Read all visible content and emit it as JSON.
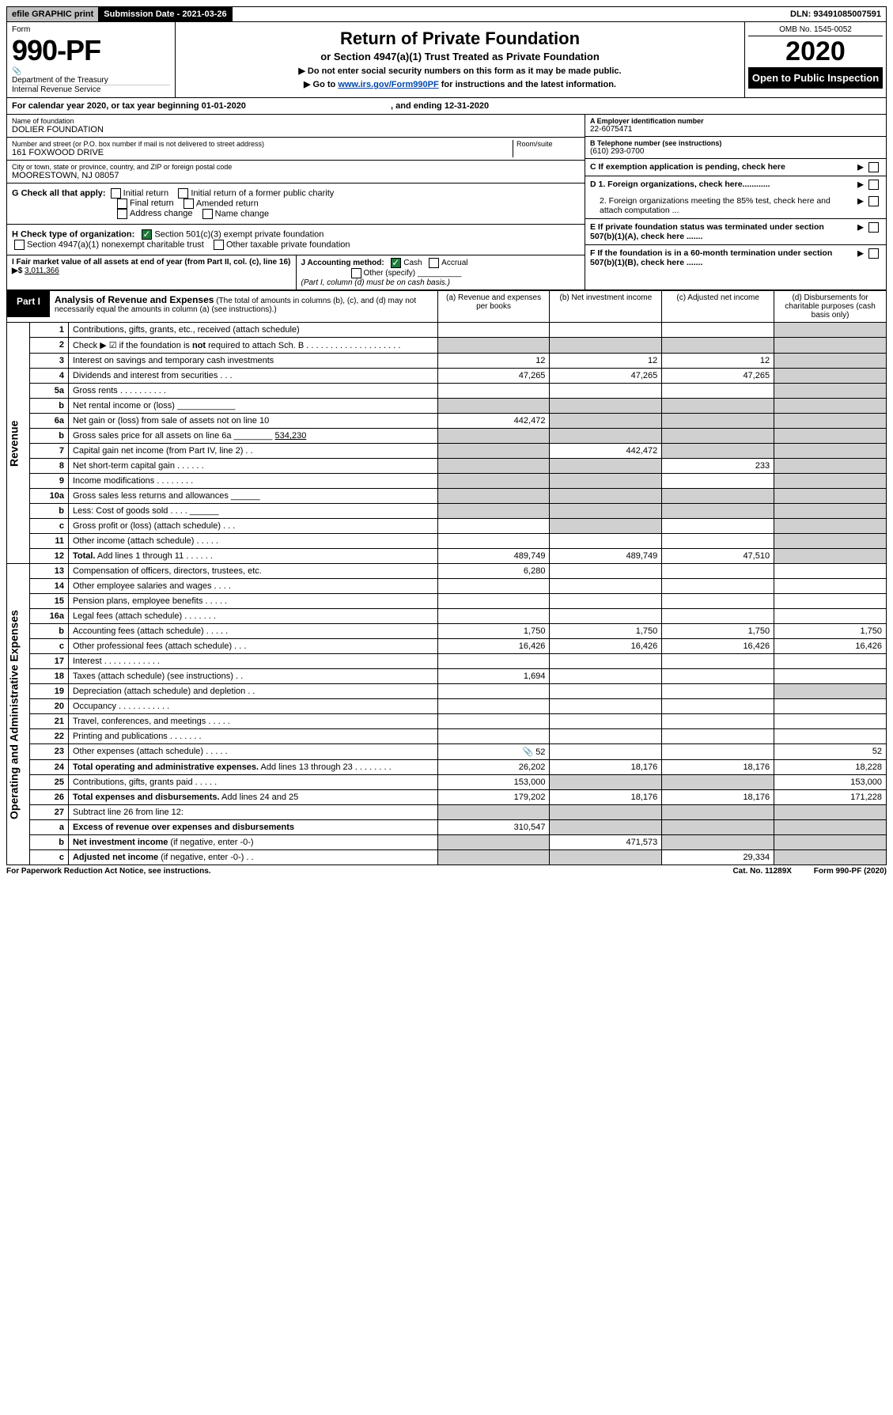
{
  "topbar": {
    "efile": "efile GRAPHIC print",
    "submission": "Submission Date - 2021-03-26",
    "dln": "DLN: 93491085007591"
  },
  "header": {
    "form_label": "Form",
    "form_num": "990-PF",
    "dept": "Department of the Treasury",
    "irs": "Internal Revenue Service",
    "title": "Return of Private Foundation",
    "subtitle": "or Section 4947(a)(1) Trust Treated as Private Foundation",
    "note1": "▶ Do not enter social security numbers on this form as it may be made public.",
    "note2_pre": "▶ Go to ",
    "note2_link": "www.irs.gov/Form990PF",
    "note2_post": " for instructions and the latest information.",
    "omb": "OMB No. 1545-0052",
    "year": "2020",
    "open": "Open to Public Inspection"
  },
  "calendar": {
    "pre": "For calendar year 2020, or tax year beginning ",
    "begin": "01-01-2020",
    "mid": " , and ending ",
    "end": "12-31-2020"
  },
  "ident": {
    "name_lbl": "Name of foundation",
    "name": "DOLIER FOUNDATION",
    "addr_lbl": "Number and street (or P.O. box number if mail is not delivered to street address)",
    "addr": "161 FOXWOOD DRIVE",
    "room_lbl": "Room/suite",
    "city_lbl": "City or town, state or province, country, and ZIP or foreign postal code",
    "city": "MOORESTOWN, NJ  08057",
    "a_lbl": "A Employer identification number",
    "a_val": "22-6075471",
    "b_lbl": "B Telephone number (see instructions)",
    "b_val": "(610) 293-0700",
    "c_lbl": "C If exemption application is pending, check here",
    "d1": "D 1. Foreign organizations, check here............",
    "d2": "2. Foreign organizations meeting the 85% test, check here and attach computation ...",
    "e": "E  If private foundation status was terminated under section 507(b)(1)(A), check here .......",
    "f": "F  If the foundation is in a 60-month termination under section 507(b)(1)(B), check here ......."
  },
  "g": {
    "label": "G Check all that apply:",
    "opts": [
      "Initial return",
      "Initial return of a former public charity",
      "Final return",
      "Amended return",
      "Address change",
      "Name change"
    ]
  },
  "h": {
    "label": "H Check type of organization:",
    "opt1": "Section 501(c)(3) exempt private foundation",
    "opt2": "Section 4947(a)(1) nonexempt charitable trust",
    "opt3": "Other taxable private foundation"
  },
  "i": {
    "label": "I Fair market value of all assets at end of year (from Part II, col. (c), line 16) ▶$ ",
    "val": "3,011,366"
  },
  "j": {
    "label": "J Accounting method:",
    "cash": "Cash",
    "accrual": "Accrual",
    "other": "Other (specify)",
    "note": "(Part I, column (d) must be on cash basis.)"
  },
  "part1": {
    "tab": "Part I",
    "title": "Analysis of Revenue and Expenses",
    "note": " (The total of amounts in columns (b), (c), and (d) may not necessarily equal the amounts in column (a) (see instructions).)",
    "cols": {
      "a": "(a)   Revenue and expenses per books",
      "b": "(b)  Net investment income",
      "c": "(c)  Adjusted net income",
      "d": "(d)  Disbursements for charitable purposes (cash basis only)"
    }
  },
  "revenue_label": "Revenue",
  "expenses_label": "Operating and Administrative Expenses",
  "rows": [
    {
      "n": "1",
      "d": "Contributions, gifts, grants, etc., received (attach schedule)",
      "a": "",
      "b": "",
      "c": "",
      "dcol": "shade"
    },
    {
      "n": "2",
      "d": "Check ▶ ☑ if the foundation is <b>not</b> required to attach Sch. B . . . . . . . . . . . . . . . . . . . .",
      "a": "shade",
      "b": "shade",
      "c": "shade",
      "dcol": "shade"
    },
    {
      "n": "3",
      "d": "Interest on savings and temporary cash investments",
      "a": "12",
      "b": "12",
      "c": "12",
      "dcol": "shade"
    },
    {
      "n": "4",
      "d": "Dividends and interest from securities   .   .   .",
      "a": "47,265",
      "b": "47,265",
      "c": "47,265",
      "dcol": "shade"
    },
    {
      "n": "5a",
      "d": "Gross rents   .   .   .   .   .   .   .   .   .   .",
      "a": "",
      "b": "",
      "c": "",
      "dcol": "shade"
    },
    {
      "n": "b",
      "d": "Net rental income or (loss)  ____________",
      "a": "shade",
      "b": "shade",
      "c": "shade",
      "dcol": "shade"
    },
    {
      "n": "6a",
      "d": "Net gain or (loss) from sale of assets not on line 10",
      "a": "442,472",
      "b": "shade",
      "c": "shade",
      "dcol": "shade"
    },
    {
      "n": "b",
      "d": "Gross sales price for all assets on line 6a ________ <u>534,230</u>",
      "a": "shade",
      "b": "shade",
      "c": "shade",
      "dcol": "shade"
    },
    {
      "n": "7",
      "d": "Capital gain net income (from Part IV, line 2)   .   .",
      "a": "shade",
      "b": "442,472",
      "c": "shade",
      "dcol": "shade"
    },
    {
      "n": "8",
      "d": "Net short-term capital gain   .   .   .   .   .   .",
      "a": "shade",
      "b": "shade",
      "c": "233",
      "dcol": "shade"
    },
    {
      "n": "9",
      "d": "Income modifications   .   .   .   .   .   .   .   .",
      "a": "shade",
      "b": "shade",
      "c": "",
      "dcol": "shade"
    },
    {
      "n": "10a",
      "d": "Gross sales less returns and allowances  ______",
      "a": "shade",
      "b": "shade",
      "c": "shade",
      "dcol": "shade"
    },
    {
      "n": "b",
      "d": "Less: Cost of goods sold   .   .   .   .  ______",
      "a": "shade",
      "b": "shade",
      "c": "shade",
      "dcol": "shade"
    },
    {
      "n": "c",
      "d": "Gross profit or (loss) (attach schedule)   .   .   .",
      "a": "",
      "b": "shade",
      "c": "",
      "dcol": "shade"
    },
    {
      "n": "11",
      "d": "Other income (attach schedule)   .   .   .   .   .",
      "a": "",
      "b": "",
      "c": "",
      "dcol": "shade"
    },
    {
      "n": "12",
      "d": "<b>Total.</b> Add lines 1 through 11   .   .   .   .   .   .",
      "a": "489,749",
      "b": "489,749",
      "c": "47,510",
      "dcol": "shade"
    }
  ],
  "exp_rows": [
    {
      "n": "13",
      "d": "Compensation of officers, directors, trustees, etc.",
      "a": "6,280",
      "b": "",
      "c": "",
      "dcol": ""
    },
    {
      "n": "14",
      "d": "Other employee salaries and wages   .   .   .   .",
      "a": "",
      "b": "",
      "c": "",
      "dcol": ""
    },
    {
      "n": "15",
      "d": "Pension plans, employee benefits   .   .   .   .   .",
      "a": "",
      "b": "",
      "c": "",
      "dcol": ""
    },
    {
      "n": "16a",
      "d": "Legal fees (attach schedule)   .   .   .   .   .   .   .",
      "a": "",
      "b": "",
      "c": "",
      "dcol": ""
    },
    {
      "n": "b",
      "d": "Accounting fees (attach schedule)   .   .   .   .   .",
      "a": "1,750",
      "b": "1,750",
      "c": "1,750",
      "dcol": "1,750"
    },
    {
      "n": "c",
      "d": "Other professional fees (attach schedule)   .   .   .",
      "a": "16,426",
      "b": "16,426",
      "c": "16,426",
      "dcol": "16,426"
    },
    {
      "n": "17",
      "d": "Interest   .   .   .   .   .   .   .   .   .   .   .   .",
      "a": "",
      "b": "",
      "c": "",
      "dcol": ""
    },
    {
      "n": "18",
      "d": "Taxes (attach schedule) (see instructions)   .   .",
      "a": "1,694",
      "b": "",
      "c": "",
      "dcol": ""
    },
    {
      "n": "19",
      "d": "Depreciation (attach schedule) and depletion   .   .",
      "a": "",
      "b": "",
      "c": "",
      "dcol": "shade"
    },
    {
      "n": "20",
      "d": "Occupancy   .   .   .   .   .   .   .   .   .   .   .",
      "a": "",
      "b": "",
      "c": "",
      "dcol": ""
    },
    {
      "n": "21",
      "d": "Travel, conferences, and meetings   .   .   .   .   .",
      "a": "",
      "b": "",
      "c": "",
      "dcol": ""
    },
    {
      "n": "22",
      "d": "Printing and publications   .   .   .   .   .   .   .",
      "a": "",
      "b": "",
      "c": "",
      "dcol": ""
    },
    {
      "n": "23",
      "d": "Other expenses (attach schedule)   .   .   .   .   .",
      "a": "📎 52",
      "b": "",
      "c": "",
      "dcol": "52"
    },
    {
      "n": "24",
      "d": "<b>Total operating and administrative expenses.</b> Add lines 13 through 23   .   .   .   .   .   .   .   .",
      "a": "26,202",
      "b": "18,176",
      "c": "18,176",
      "dcol": "18,228"
    },
    {
      "n": "25",
      "d": "Contributions, gifts, grants paid   .   .   .   .   .",
      "a": "153,000",
      "b": "shade",
      "c": "shade",
      "dcol": "153,000"
    },
    {
      "n": "26",
      "d": "<b>Total expenses and disbursements.</b> Add lines 24 and 25",
      "a": "179,202",
      "b": "18,176",
      "c": "18,176",
      "dcol": "171,228"
    },
    {
      "n": "27",
      "d": "Subtract line 26 from line 12:",
      "a": "shade",
      "b": "shade",
      "c": "shade",
      "dcol": "shade"
    },
    {
      "n": "a",
      "d": "<b>Excess of revenue over expenses and disbursements</b>",
      "a": "310,547",
      "b": "shade",
      "c": "shade",
      "dcol": "shade"
    },
    {
      "n": "b",
      "d": "<b>Net investment income</b> (if negative, enter -0-)",
      "a": "shade",
      "b": "471,573",
      "c": "shade",
      "dcol": "shade"
    },
    {
      "n": "c",
      "d": "<b>Adjusted net income</b> (if negative, enter -0-)   .   .",
      "a": "shade",
      "b": "shade",
      "c": "29,334",
      "dcol": "shade"
    }
  ],
  "footer": {
    "left": "For Paperwork Reduction Act Notice, see instructions.",
    "mid": "Cat. No. 11289X",
    "right": "Form 990-PF (2020)"
  }
}
